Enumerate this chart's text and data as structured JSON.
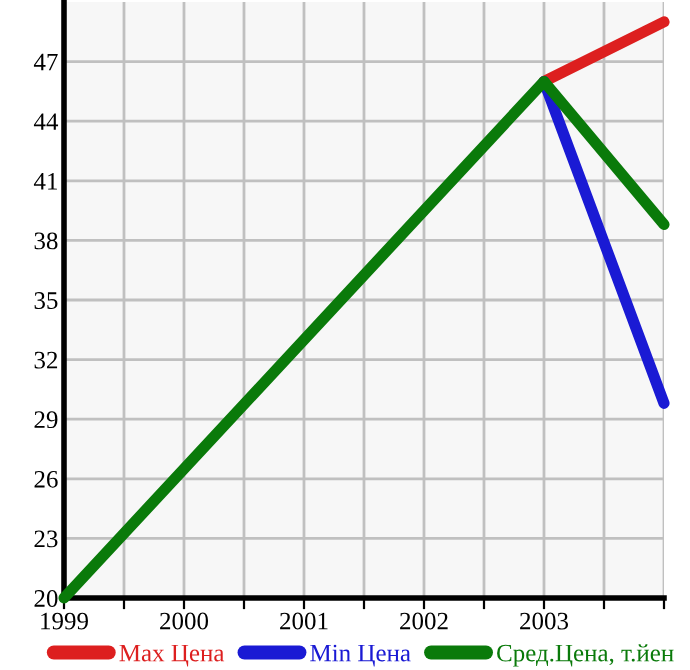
{
  "chart_data": {
    "type": "line",
    "x": [
      1999,
      2003,
      2004
    ],
    "series": [
      {
        "name": "Max Цена",
        "color": "#dd1f1f",
        "values": [
          null,
          46,
          49
        ]
      },
      {
        "name": "Min Цена",
        "color": "#1a1ad4",
        "values": [
          null,
          46,
          29.8
        ]
      },
      {
        "name": "Сред.Цена, т.йен",
        "color": "#0a7a0a",
        "values": [
          20,
          46,
          38.8
        ]
      }
    ],
    "xlim": [
      1999,
      2004
    ],
    "xticks": [
      1999,
      {
        "value": 1999.5,
        "label": null
      },
      2000,
      {
        "value": 2000.5,
        "label": null
      },
      2001,
      {
        "value": 2001.5,
        "label": null
      },
      2002,
      {
        "value": 2002.5,
        "label": null
      },
      2003,
      {
        "value": 2003.5,
        "label": null
      },
      {
        "value": 2004,
        "label": null
      }
    ],
    "ylim": [
      20,
      50
    ],
    "yticks": [
      20,
      23,
      26,
      29,
      32,
      35,
      38,
      41,
      44,
      47
    ],
    "grid": true,
    "legend": "bottom",
    "marker": "none",
    "line_style": "solid"
  }
}
